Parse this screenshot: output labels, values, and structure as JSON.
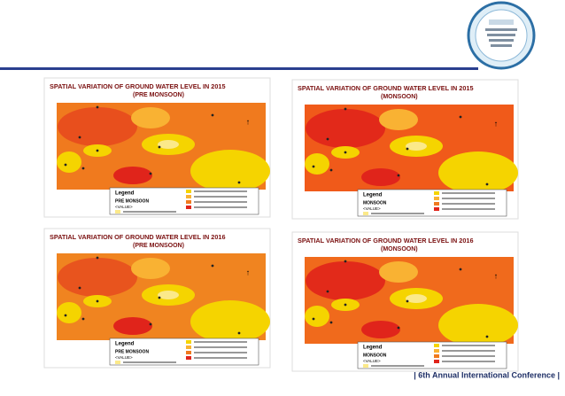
{
  "footer": "| 6th Annual International Conference |",
  "panels": [
    {
      "title": "SPATIAL VARIATION OF GROUND WATER LEVEL IN 2015",
      "subtitle": "(PRE MONSOON)",
      "legend_title": "Legend",
      "season": "PRE MONSOON",
      "value_label": "<VALUE>"
    },
    {
      "title": "SPATIAL VARIATION OF GROUND WATER LEVEL IN 2015",
      "subtitle": "(MONSOON)",
      "legend_title": "Legend",
      "season": "MONSOON",
      "value_label": "<VALUE>"
    },
    {
      "title": "SPATIAL VARIATION OF GROUND WATER LEVEL IN 2016",
      "subtitle": "(PRE MONSOON)",
      "legend_title": "Legend",
      "season": "PRE MONSOON",
      "value_label": "<VALUE>"
    },
    {
      "title": "SPATIAL VARIATION OF GROUND WATER LEVEL IN 2016",
      "subtitle": "(MONSOON)",
      "legend_title": "Legend",
      "season": "MONSOON",
      "value_label": "<VALUE>"
    }
  ]
}
